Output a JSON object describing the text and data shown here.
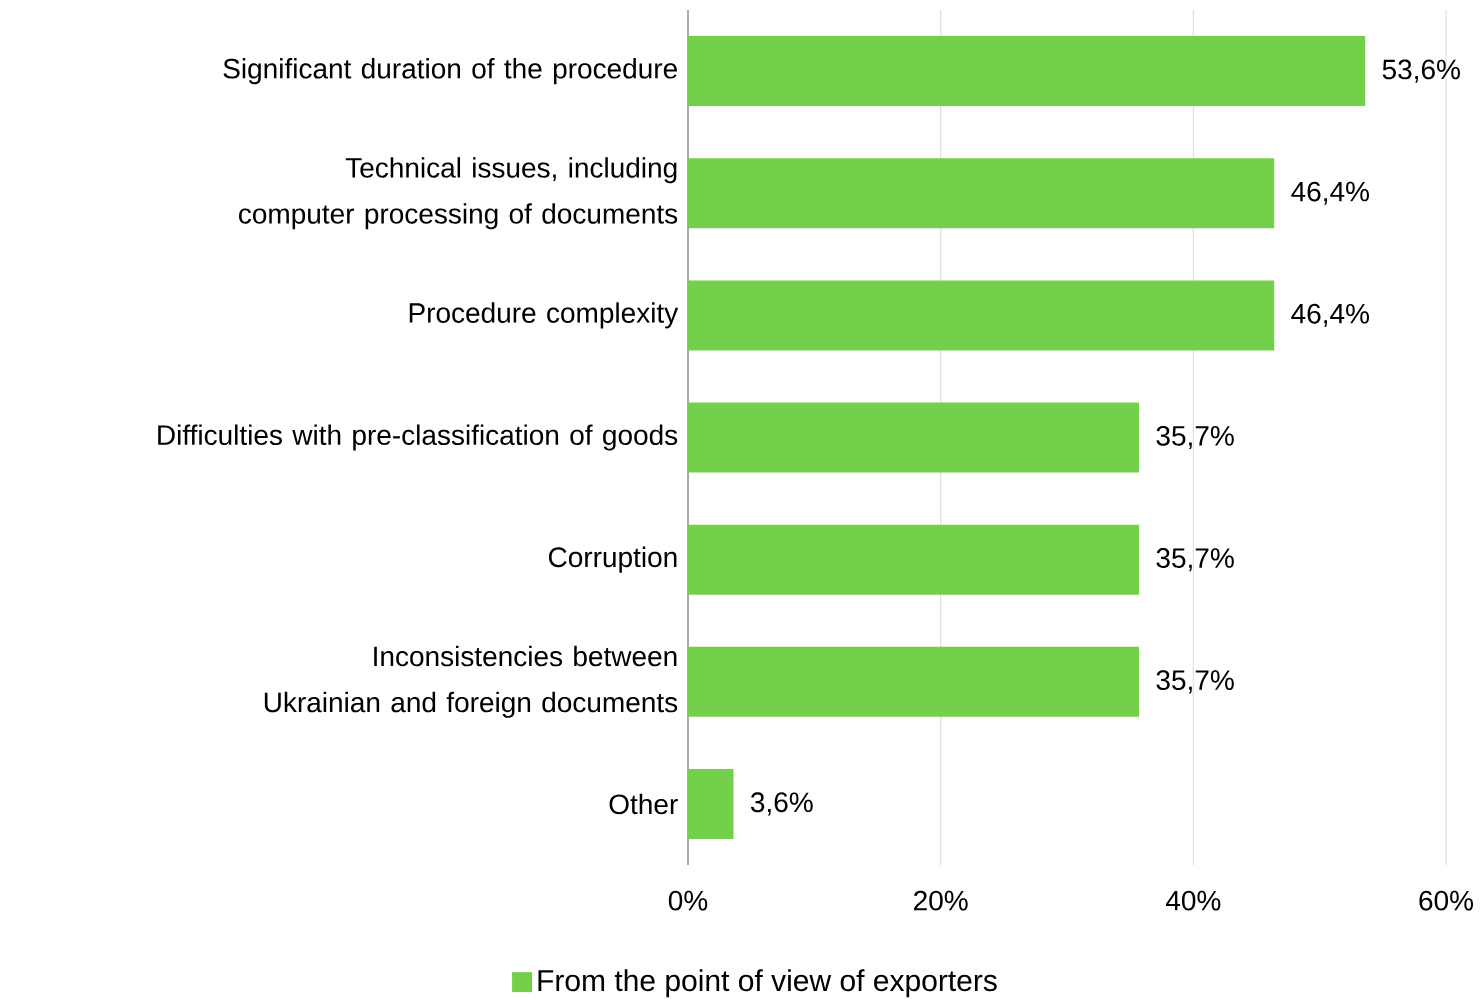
{
  "chart_data": {
    "type": "bar",
    "orientation": "horizontal",
    "categories": [
      "Significant duration of the procedure",
      "Technical issues, including computer processing of documents",
      "Procedure complexity",
      "Difficulties with pre-classification of goods",
      "Corruption",
      "Inconsistencies between Ukrainian and foreign documents",
      "Other"
    ],
    "series": [
      {
        "name": "From the point of view of exporters",
        "color": "#74d04a",
        "values": [
          53.6,
          46.4,
          46.4,
          35.7,
          35.7,
          35.7,
          3.6
        ],
        "value_labels": [
          "53,6%",
          "46,4%",
          "46,4%",
          "35,7%",
          "35,7%",
          "35,7%",
          "3,6%"
        ]
      }
    ],
    "xlim": [
      0,
      60
    ],
    "xticks": [
      {
        "value": 0,
        "label": "0%"
      },
      {
        "value": 20,
        "label": "20%"
      },
      {
        "value": 40,
        "label": "40%"
      },
      {
        "value": 60,
        "label": "60%"
      }
    ],
    "grid": "x",
    "legend": "bottom"
  }
}
